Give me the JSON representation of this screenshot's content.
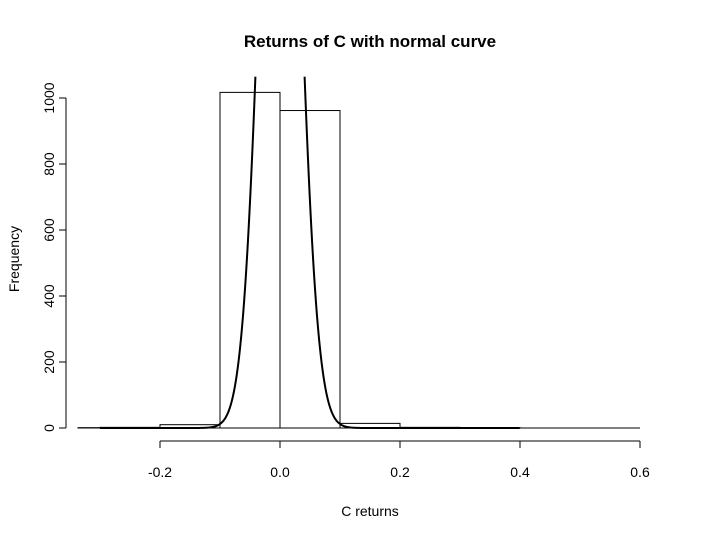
{
  "chart_data": {
    "type": "histogram",
    "title": "Returns of C with normal curve",
    "xlabel": "C returns",
    "ylabel": "Frequency",
    "xlim": [
      -0.3,
      0.6
    ],
    "ylim": [
      0,
      1000
    ],
    "x_ticks": [
      -0.2,
      0.0,
      0.2,
      0.4,
      0.6
    ],
    "x_tick_labels": [
      "-0.2",
      "0.0",
      "0.2",
      "0.4",
      "0.6"
    ],
    "y_ticks": [
      0,
      200,
      400,
      600,
      800,
      1000
    ],
    "y_tick_labels": [
      "0",
      "200",
      "400",
      "600",
      "800",
      "1000"
    ],
    "bins": [
      {
        "x0": -0.4,
        "x1": -0.3,
        "count": 1
      },
      {
        "x0": -0.3,
        "x1": -0.2,
        "count": 2
      },
      {
        "x0": -0.2,
        "x1": -0.1,
        "count": 10
      },
      {
        "x0": -0.1,
        "x1": 0.0,
        "count": 1017
      },
      {
        "x0": 0.0,
        "x1": 0.1,
        "count": 962
      },
      {
        "x0": 0.1,
        "x1": 0.2,
        "count": 14
      },
      {
        "x0": 0.2,
        "x1": 0.3,
        "count": 2
      },
      {
        "x0": 0.3,
        "x1": 0.4,
        "count": 1
      }
    ],
    "normal_curve": {
      "mean": 0.0,
      "sd": 0.0305,
      "scale": 200.9
    },
    "grid": false,
    "legend": "none"
  }
}
